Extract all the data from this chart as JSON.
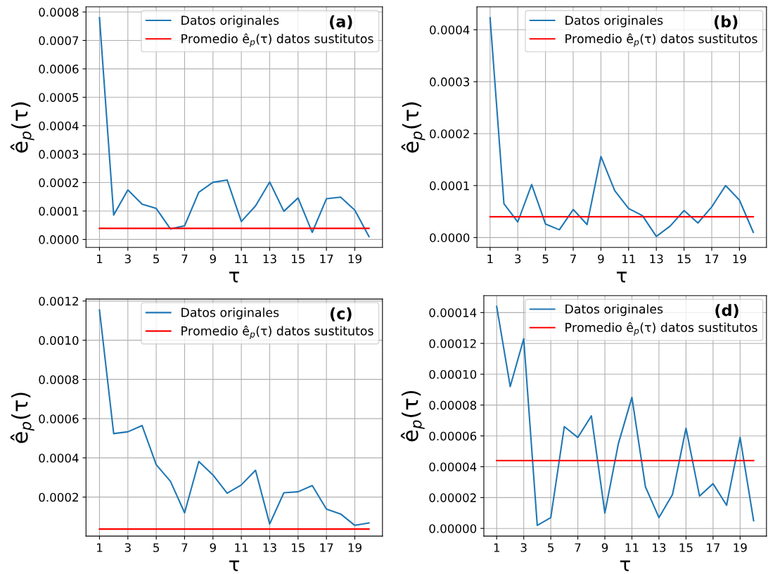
{
  "chart_data": [
    {
      "type": "line",
      "xlabel": "τ",
      "ylabel": "ê$_{p}$(τ)",
      "annotations": [
        "(a)"
      ],
      "grid": true,
      "legend": "top right",
      "xlim": [
        0.05,
        20.95
      ],
      "xticks": [
        1,
        3,
        5,
        7,
        9,
        11,
        13,
        15,
        17,
        19
      ],
      "ylim": [
        -2.8e-05,
        0.000818
      ],
      "yticks": [
        {
          "value": 0,
          "label": "0.0000"
        },
        {
          "value": 0.0001,
          "label": "0.0001"
        },
        {
          "value": 0.0002,
          "label": "0.0002"
        },
        {
          "value": 0.0003,
          "label": "0.0003"
        },
        {
          "value": 0.0004,
          "label": "0.0004"
        },
        {
          "value": 0.0005,
          "label": "0.0005"
        },
        {
          "value": 0.0006,
          "label": "0.0006"
        },
        {
          "value": 0.0007,
          "label": "0.0007"
        },
        {
          "value": 0.0008,
          "label": "0.0008"
        }
      ],
      "series": [
        {
          "name": "Datos originales",
          "color": "#1f77b4",
          "x": [
            1,
            2,
            3,
            4,
            5,
            6,
            7,
            8,
            9,
            10,
            11,
            12,
            13,
            14,
            15,
            16,
            17,
            18,
            19,
            20
          ],
          "values": [
            0.00078,
            8.6e-05,
            0.000174,
            0.000124,
            0.000109,
            3.7e-05,
            4.8e-05,
            0.000166,
            0.000201,
            0.000209,
            6.3e-05,
            0.000118,
            0.000202,
            9.9e-05,
            0.000146,
            2.5e-05,
            0.000143,
            0.000149,
            0.000103,
            1e-05
          ]
        },
        {
          "name": "Promedio ê$_{p}$(τ) datos sustitutos",
          "color": "#ff0000",
          "x": [
            1,
            20
          ],
          "values": [
            3.9e-05,
            3.9e-05
          ]
        }
      ]
    },
    {
      "type": "line",
      "xlabel": "τ",
      "ylabel": "ê$_{p}$(τ)",
      "annotations": [
        "(b)"
      ],
      "grid": true,
      "legend": "top right",
      "xlim": [
        0.05,
        20.95
      ],
      "xticks": [
        1,
        3,
        5,
        7,
        9,
        11,
        13,
        15,
        17,
        19
      ],
      "ylim": [
        -1.9e-05,
        0.000444
      ],
      "yticks": [
        {
          "value": 0,
          "label": "0.0000"
        },
        {
          "value": 0.0001,
          "label": "0.0001"
        },
        {
          "value": 0.0002,
          "label": "0.0002"
        },
        {
          "value": 0.0003,
          "label": "0.0003"
        },
        {
          "value": 0.0004,
          "label": "0.0004"
        }
      ],
      "series": [
        {
          "name": "Datos originales",
          "color": "#1f77b4",
          "x": [
            1,
            2,
            3,
            4,
            5,
            6,
            7,
            8,
            9,
            10,
            11,
            12,
            13,
            14,
            15,
            16,
            17,
            18,
            19,
            20
          ],
          "values": [
            0.000423,
            6.5e-05,
            3e-05,
            0.000102,
            2.6e-05,
            1.5e-05,
            5.4e-05,
            2.5e-05,
            0.000156,
            9e-05,
            5.6e-05,
            4.2e-05,
            2e-06,
            2.2e-05,
            5.2e-05,
            2.8e-05,
            5.9e-05,
            0.0001,
            7.2e-05,
            1e-05
          ]
        },
        {
          "name": "Promedio ê$_{p}$(τ) datos sustitutos",
          "color": "#ff0000",
          "x": [
            1,
            20
          ],
          "values": [
            4e-05,
            4e-05
          ]
        }
      ]
    },
    {
      "type": "line",
      "xlabel": "τ",
      "ylabel": "ê$_{p}$(τ)",
      "annotations": [
        "(c)"
      ],
      "grid": true,
      "legend": "top right",
      "xlim": [
        0.05,
        20.95
      ],
      "xticks": [
        1,
        3,
        5,
        7,
        9,
        11,
        13,
        15,
        17,
        19
      ],
      "ylim": [
        1e-06,
        0.00121
      ],
      "yticks": [
        {
          "value": 0.0002,
          "label": "0.0002"
        },
        {
          "value": 0.0004,
          "label": "0.0004"
        },
        {
          "value": 0.0006,
          "label": "0.0006"
        },
        {
          "value": 0.0008,
          "label": "0.0008"
        },
        {
          "value": 0.001,
          "label": "0.0010"
        },
        {
          "value": 0.0012,
          "label": "0.0012"
        }
      ],
      "series": [
        {
          "name": "Datos originales",
          "color": "#1f77b4",
          "x": [
            1,
            2,
            3,
            4,
            5,
            6,
            7,
            8,
            9,
            10,
            11,
            12,
            13,
            14,
            15,
            16,
            17,
            18,
            19,
            20
          ],
          "values": [
            0.001154,
            0.000524,
            0.000533,
            0.000565,
            0.000365,
            0.000281,
            0.00012,
            0.000382,
            0.000313,
            0.00022,
            0.000262,
            0.000337,
            6.3e-05,
            0.000222,
            0.000227,
            0.000259,
            0.000139,
            0.000114,
            5.6e-05,
            6.8e-05
          ]
        },
        {
          "name": "Promedio ê$_{p}$(τ) datos sustitutos",
          "color": "#ff0000",
          "x": [
            1,
            20
          ],
          "values": [
            3.7e-05,
            3.7e-05
          ]
        }
      ]
    },
    {
      "type": "line",
      "xlabel": "τ",
      "ylabel": "ê$_{p}$(τ)",
      "annotations": [
        "(d)"
      ],
      "grid": true,
      "legend": "top right",
      "xlim": [
        0.05,
        20.95
      ],
      "xticks": [
        1,
        3,
        5,
        7,
        9,
        11,
        13,
        15,
        17,
        19
      ],
      "ylim": [
        -5e-06,
        0.000151
      ],
      "yticks": [
        {
          "value": 0,
          "label": "0.00000"
        },
        {
          "value": 2e-05,
          "label": "0.00002"
        },
        {
          "value": 4e-05,
          "label": "0.00004"
        },
        {
          "value": 6e-05,
          "label": "0.00006"
        },
        {
          "value": 8e-05,
          "label": "0.00008"
        },
        {
          "value": 0.0001,
          "label": "0.00010"
        },
        {
          "value": 0.00012,
          "label": "0.00012"
        },
        {
          "value": 0.00014,
          "label": "0.00014"
        }
      ],
      "series": [
        {
          "name": "Datos originales",
          "color": "#1f77b4",
          "x": [
            1,
            2,
            3,
            4,
            5,
            6,
            7,
            8,
            9,
            10,
            11,
            12,
            13,
            14,
            15,
            16,
            17,
            18,
            19,
            20
          ],
          "values": [
            0.000144,
            9.2e-05,
            0.000123,
            2e-06,
            7e-06,
            6.6e-05,
            5.9e-05,
            7.3e-05,
            1e-05,
            5.5e-05,
            8.5e-05,
            2.7e-05,
            7e-06,
            2.2e-05,
            6.5e-05,
            2.1e-05,
            2.9e-05,
            1.5e-05,
            5.9e-05,
            5e-06
          ]
        },
        {
          "name": "Promedio ê$_{p}$(τ) datos sustitutos",
          "color": "#ff0000",
          "x": [
            1,
            20
          ],
          "values": [
            4.4e-05,
            4.4e-05
          ]
        }
      ]
    }
  ]
}
